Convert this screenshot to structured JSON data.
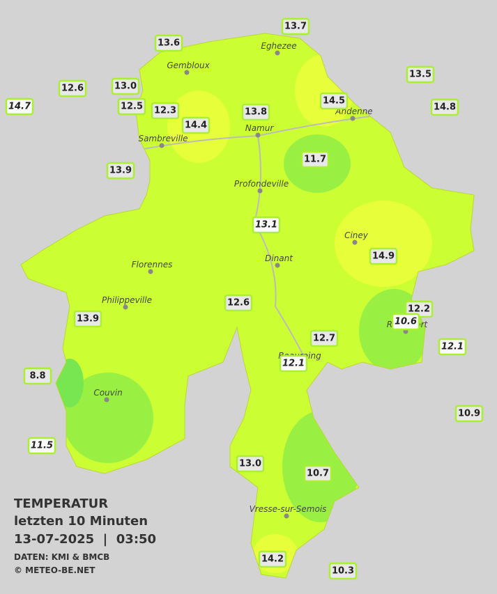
{
  "legend": {
    "title": "TEMPERATUR",
    "subtitle": "letzten 10 Minuten",
    "datetime": "13-07-2025  |  03:50",
    "source": "DATEN: KMI & BMCB",
    "copyright": "© METEO-BE.NET"
  },
  "cities": [
    "Eghezee",
    "Gembloux",
    "Namur",
    "Sambreville",
    "Andenne",
    "Profondeville",
    "Ciney",
    "Dinant",
    "Florennes",
    "Philippeville",
    "Rochefort",
    "Beauraing",
    "Couvin",
    "Vresse-sur-Semois"
  ],
  "stations": [
    "13.7",
    "13.6",
    "12.6",
    "13.0",
    "13.5",
    "14.7",
    "12.5",
    "12.3",
    "14.4",
    "13.8",
    "14.5",
    "14.8",
    "11.7",
    "13.9",
    "13.1",
    "14.9",
    "12.6",
    "13.9",
    "12.2",
    "10.6",
    "12.7",
    "12.1",
    "12.1",
    "8.8",
    "10.9",
    "11.5",
    "13.0",
    "10.7",
    "14.2",
    "10.3"
  ]
}
